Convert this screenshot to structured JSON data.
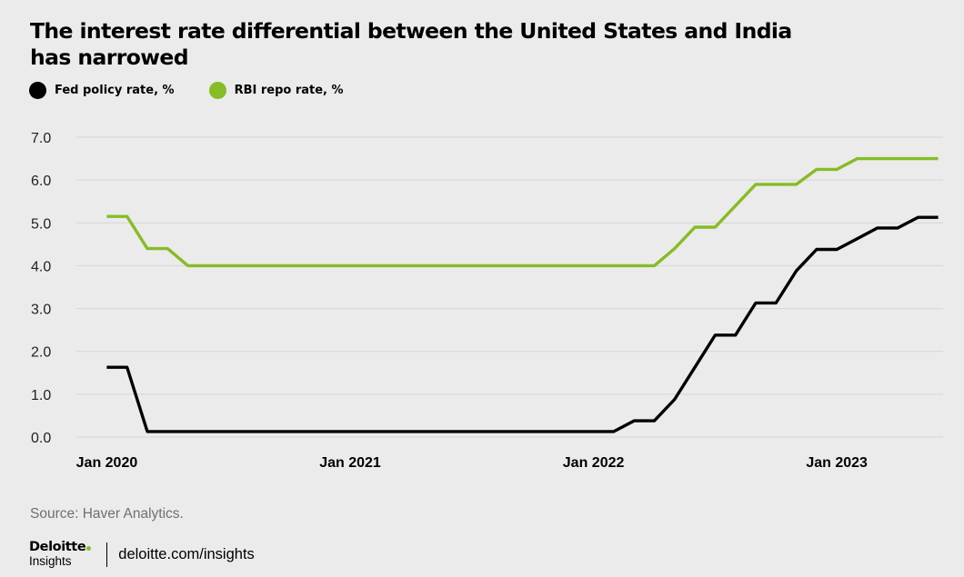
{
  "title_line1": "The interest rate differential between the United States and India",
  "title_line2": "has narrowed",
  "source": "Source: Haver Analytics.",
  "brand": {
    "name": "Deloitte",
    "sub": "Insights",
    "url": "deloitte.com/insights"
  },
  "colors": {
    "fed": "#000000",
    "rbi": "#86bc25",
    "grid": "#d6d6d6",
    "logo_dot": "#86bc25"
  },
  "chart_data": {
    "type": "line",
    "title": "The interest rate differential between the United States and India has narrowed",
    "xlabel": "",
    "ylabel": "",
    "ylim": [
      0,
      7
    ],
    "y_ticks": [
      "0.0",
      "1.0",
      "2.0",
      "3.0",
      "4.0",
      "5.0",
      "6.0",
      "7.0"
    ],
    "x_ticks": [
      {
        "label": "Jan 2020",
        "date": "2020-01"
      },
      {
        "label": "Jan 2021",
        "date": "2021-01"
      },
      {
        "label": "Jan 2022",
        "date": "2022-01"
      },
      {
        "label": "Jan 2023",
        "date": "2023-01"
      }
    ],
    "grid": "horizontal",
    "legend": "top-left",
    "series": [
      {
        "name": "Fed policy rate, %",
        "color": "#000000",
        "points": [
          [
            "2020-01",
            1.63
          ],
          [
            "2020-02",
            1.63
          ],
          [
            "2020-03",
            0.13
          ],
          [
            "2020-04",
            0.13
          ],
          [
            "2020-05",
            0.13
          ],
          [
            "2020-06",
            0.13
          ],
          [
            "2020-07",
            0.13
          ],
          [
            "2020-08",
            0.13
          ],
          [
            "2020-09",
            0.13
          ],
          [
            "2020-10",
            0.13
          ],
          [
            "2020-11",
            0.13
          ],
          [
            "2020-12",
            0.13
          ],
          [
            "2021-01",
            0.13
          ],
          [
            "2021-02",
            0.13
          ],
          [
            "2021-03",
            0.13
          ],
          [
            "2021-04",
            0.13
          ],
          [
            "2021-05",
            0.13
          ],
          [
            "2021-06",
            0.13
          ],
          [
            "2021-07",
            0.13
          ],
          [
            "2021-08",
            0.13
          ],
          [
            "2021-09",
            0.13
          ],
          [
            "2021-10",
            0.13
          ],
          [
            "2021-11",
            0.13
          ],
          [
            "2021-12",
            0.13
          ],
          [
            "2022-01",
            0.13
          ],
          [
            "2022-02",
            0.13
          ],
          [
            "2022-03",
            0.38
          ],
          [
            "2022-04",
            0.38
          ],
          [
            "2022-05",
            0.88
          ],
          [
            "2022-06",
            1.63
          ],
          [
            "2022-07",
            2.38
          ],
          [
            "2022-08",
            2.38
          ],
          [
            "2022-09",
            3.13
          ],
          [
            "2022-10",
            3.13
          ],
          [
            "2022-11",
            3.88
          ],
          [
            "2022-12",
            4.38
          ],
          [
            "2023-01",
            4.38
          ],
          [
            "2023-02",
            4.63
          ],
          [
            "2023-03",
            4.88
          ],
          [
            "2023-04",
            4.88
          ],
          [
            "2023-05",
            5.13
          ],
          [
            "2023-06",
            5.13
          ]
        ]
      },
      {
        "name": "RBI repo rate, %",
        "color": "#86bc25",
        "points": [
          [
            "2020-01",
            5.15
          ],
          [
            "2020-02",
            5.15
          ],
          [
            "2020-03",
            4.4
          ],
          [
            "2020-04",
            4.4
          ],
          [
            "2020-05",
            4.0
          ],
          [
            "2020-06",
            4.0
          ],
          [
            "2020-07",
            4.0
          ],
          [
            "2020-08",
            4.0
          ],
          [
            "2020-09",
            4.0
          ],
          [
            "2020-10",
            4.0
          ],
          [
            "2020-11",
            4.0
          ],
          [
            "2020-12",
            4.0
          ],
          [
            "2021-01",
            4.0
          ],
          [
            "2021-02",
            4.0
          ],
          [
            "2021-03",
            4.0
          ],
          [
            "2021-04",
            4.0
          ],
          [
            "2021-05",
            4.0
          ],
          [
            "2021-06",
            4.0
          ],
          [
            "2021-07",
            4.0
          ],
          [
            "2021-08",
            4.0
          ],
          [
            "2021-09",
            4.0
          ],
          [
            "2021-10",
            4.0
          ],
          [
            "2021-11",
            4.0
          ],
          [
            "2021-12",
            4.0
          ],
          [
            "2022-01",
            4.0
          ],
          [
            "2022-02",
            4.0
          ],
          [
            "2022-03",
            4.0
          ],
          [
            "2022-04",
            4.0
          ],
          [
            "2022-05",
            4.4
          ],
          [
            "2022-06",
            4.9
          ],
          [
            "2022-07",
            4.9
          ],
          [
            "2022-08",
            5.4
          ],
          [
            "2022-09",
            5.9
          ],
          [
            "2022-10",
            5.9
          ],
          [
            "2022-11",
            5.9
          ],
          [
            "2022-12",
            6.25
          ],
          [
            "2023-01",
            6.25
          ],
          [
            "2023-02",
            6.5
          ],
          [
            "2023-03",
            6.5
          ],
          [
            "2023-04",
            6.5
          ],
          [
            "2023-05",
            6.5
          ],
          [
            "2023-06",
            6.5
          ]
        ]
      }
    ]
  }
}
